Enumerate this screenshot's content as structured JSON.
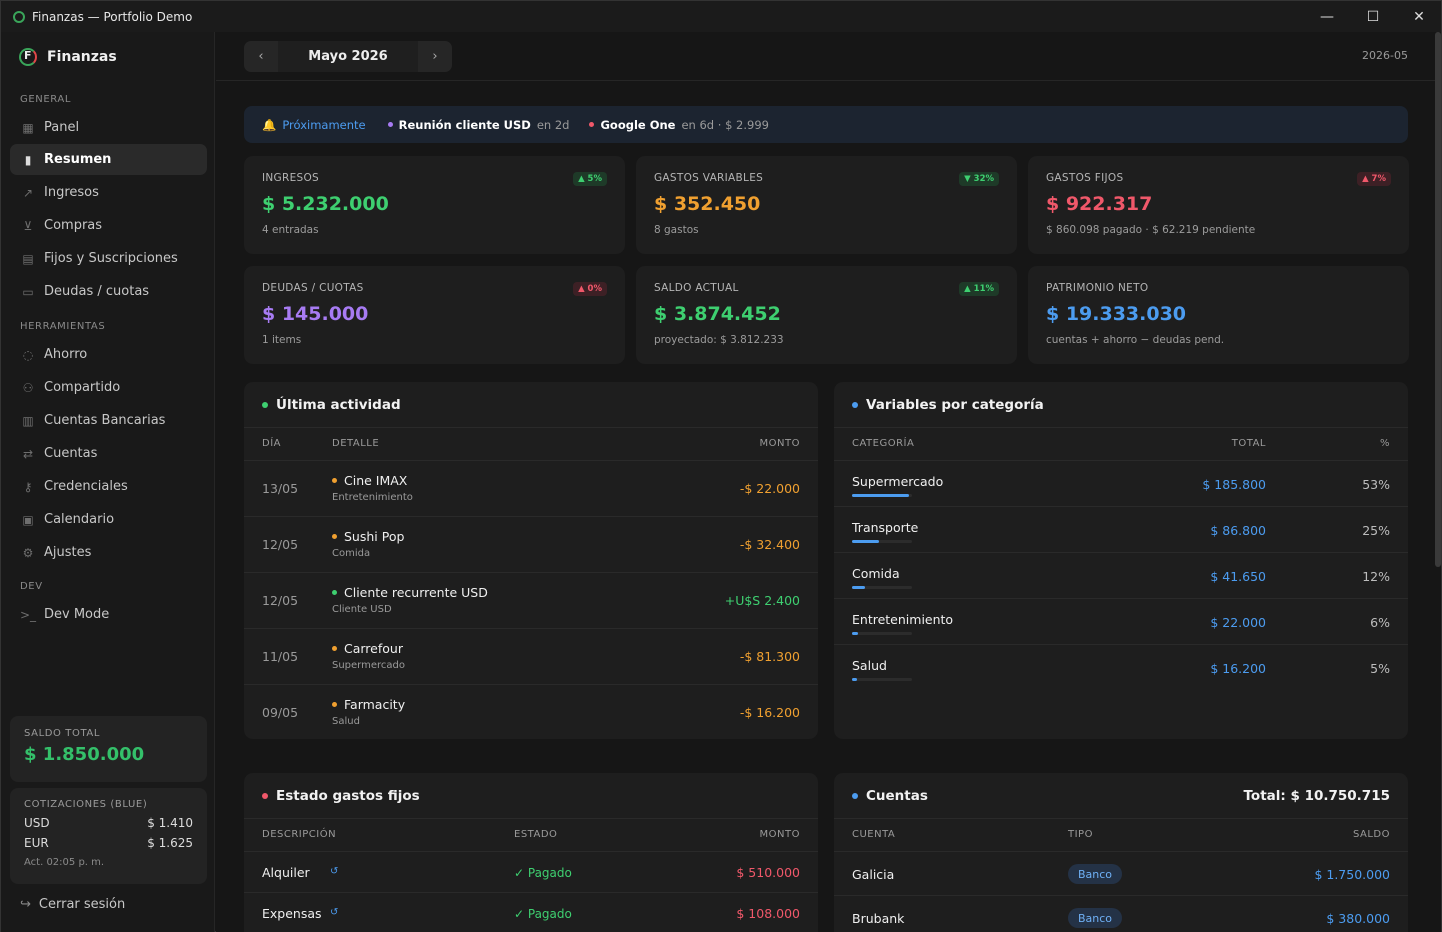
{
  "window": {
    "title": "Finanzas — Portfolio Demo"
  },
  "sidebar": {
    "brand": "Finanzas",
    "sections": {
      "general": "GENERAL",
      "tools": "HERRAMIENTAS",
      "dev": "DEV"
    },
    "items": [
      {
        "label": "Panel",
        "icon": "grid-icon"
      },
      {
        "label": "Resumen",
        "icon": "bar-chart-icon"
      },
      {
        "label": "Ingresos",
        "icon": "trend-up-icon"
      },
      {
        "label": "Compras",
        "icon": "cart-icon"
      },
      {
        "label": "Fijos y Suscripciones",
        "icon": "receipt-icon"
      },
      {
        "label": "Deudas / cuotas",
        "icon": "card-icon"
      },
      {
        "label": "Ahorro",
        "icon": "piggy-icon"
      },
      {
        "label": "Compartido",
        "icon": "users-icon"
      },
      {
        "label": "Cuentas Bancarias",
        "icon": "bank-icon"
      },
      {
        "label": "Cuentas",
        "icon": "swap-icon"
      },
      {
        "label": "Credenciales",
        "icon": "key-icon"
      },
      {
        "label": "Calendario",
        "icon": "calendar-icon"
      },
      {
        "label": "Ajustes",
        "icon": "gear-icon"
      },
      {
        "label": "Dev Mode",
        "icon": "terminal-icon"
      }
    ],
    "balance": {
      "label": "SALDO TOTAL",
      "value": "$ 1.850.000"
    },
    "quotes": {
      "label": "COTIZACIONES (BLUE)",
      "rows": [
        {
          "cur": "USD",
          "val": "$ 1.410"
        },
        {
          "cur": "EUR",
          "val": "$ 1.625"
        }
      ],
      "updated": "Act. 02:05 p. m."
    },
    "logout": "Cerrar sesión"
  },
  "topbar": {
    "month": "Mayo 2026",
    "period": "2026-05"
  },
  "upcoming": {
    "title": "Próximamente",
    "items": [
      {
        "name": "Reunión cliente USD",
        "meta": "en 2d"
      },
      {
        "name": "Google One",
        "meta": "en 6d · $ 2.999"
      }
    ]
  },
  "kpis": [
    {
      "label": "INGRESOS",
      "value": "$ 5.232.000",
      "sub": "4 entradas",
      "badge": "▲ 5%",
      "color": "#3ecf70"
    },
    {
      "label": "GASTOS VARIABLES",
      "value": "$ 352.450",
      "sub": "8 gastos",
      "badge": "▼ 32%",
      "color": "#f0a030"
    },
    {
      "label": "GASTOS FIJOS",
      "value": "$ 922.317",
      "sub": "$ 860.098 pagado · $ 62.219 pendiente",
      "badge": "▲ 7%",
      "color": "#f0586a"
    },
    {
      "label": "DEUDAS / CUOTAS",
      "value": "$ 145.000",
      "sub": "1 items",
      "badge": "▲ 0%",
      "color": "#a77bf3"
    },
    {
      "label": "SALDO ACTUAL",
      "value": "$ 3.874.452",
      "sub": "proyectado: $ 3.812.233",
      "badge": "▲ 11%",
      "color": "#3ecf70"
    },
    {
      "label": "PATRIMONIO NETO",
      "value": "$ 19.333.030",
      "sub": "cuentas + ahorro − deudas pend.",
      "badge": "",
      "color": "#4c9cf0"
    }
  ],
  "activity": {
    "title": "Última actividad",
    "headers": {
      "day": "DÍA",
      "detail": "DETALLE",
      "amount": "MONTO"
    },
    "rows": [
      {
        "day": "13/05",
        "name": "Cine IMAX",
        "cat": "Entretenimiento",
        "amount": "-$ 22.000",
        "dot": "#f0a030"
      },
      {
        "day": "12/05",
        "name": "Sushi Pop",
        "cat": "Comida",
        "amount": "-$ 32.400",
        "dot": "#f0a030"
      },
      {
        "day": "12/05",
        "name": "Cliente recurrente USD",
        "cat": "Cliente USD",
        "amount": "+U$S 2.400",
        "dot": "#3ecf70"
      },
      {
        "day": "11/05",
        "name": "Carrefour",
        "cat": "Supermercado",
        "amount": "-$ 81.300",
        "dot": "#f0a030"
      },
      {
        "day": "09/05",
        "name": "Farmacity",
        "cat": "Salud",
        "amount": "-$ 16.200",
        "dot": "#f0a030"
      }
    ]
  },
  "categories": {
    "title": "Variables por categoría",
    "headers": {
      "cat": "CATEGORÍA",
      "total": "TOTAL",
      "pct": "%"
    },
    "rows": [
      {
        "name": "Supermercado",
        "total": "$ 185.800",
        "pct": "53%",
        "share": 0.53
      },
      {
        "name": "Transporte",
        "total": "$ 86.800",
        "pct": "25%",
        "share": 0.25
      },
      {
        "name": "Comida",
        "total": "$ 41.650",
        "pct": "12%",
        "share": 0.12
      },
      {
        "name": "Entretenimiento",
        "total": "$ 22.000",
        "pct": "6%",
        "share": 0.06
      },
      {
        "name": "Salud",
        "total": "$ 16.200",
        "pct": "5%",
        "share": 0.05
      }
    ]
  },
  "fixed": {
    "title": "Estado gastos fijos",
    "headers": {
      "desc": "DESCRIPCIÓN",
      "state": "ESTADO",
      "amount": "MONTO"
    },
    "rows": [
      {
        "desc": "Alquiler",
        "state": "✓ Pagado",
        "amount": "$ 510.000"
      },
      {
        "desc": "Expensas",
        "state": "✓ Pagado",
        "amount": "$ 108.000"
      }
    ]
  },
  "accounts": {
    "title": "Cuentas",
    "total": "Total: $ 10.750.715",
    "headers": {
      "acc": "CUENTA",
      "type": "TIPO",
      "bal": "SALDO"
    },
    "rows": [
      {
        "name": "Galicia",
        "type": "Banco",
        "bal": "$ 1.750.000"
      },
      {
        "name": "Brubank",
        "type": "Banco",
        "bal": "$ 380.000"
      }
    ]
  }
}
